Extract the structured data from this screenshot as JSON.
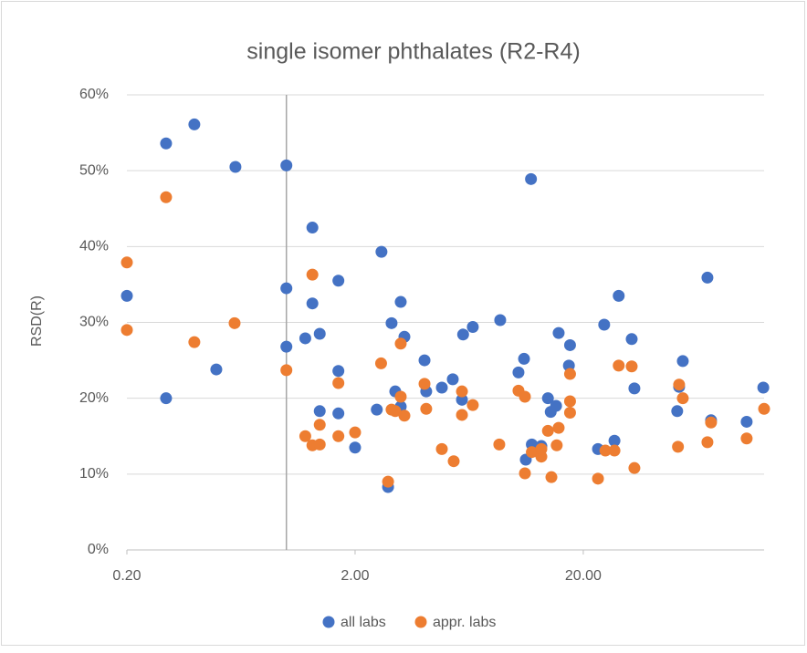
{
  "chart_data": {
    "type": "scatter",
    "title": "single isomer phthalates (R2-R4)",
    "y_label": "RSD(R)",
    "x_log": true,
    "grid": true,
    "legend": "bottom",
    "xlim": [
      0.2,
      124
    ],
    "ylim": [
      0,
      60
    ],
    "xticks": [
      {
        "value": 0.2,
        "label": "0.20"
      },
      {
        "value": 2,
        "label": "2.00"
      },
      {
        "value": 20,
        "label": "20.00"
      }
    ],
    "yticks": [
      {
        "value": 0,
        "label": "0%"
      },
      {
        "value": 10,
        "label": "10%"
      },
      {
        "value": 20,
        "label": "20%"
      },
      {
        "value": 30,
        "label": "30%"
      },
      {
        "value": 40,
        "label": "40%"
      },
      {
        "value": 50,
        "label": "50%"
      },
      {
        "value": 60,
        "label": "60%"
      }
    ],
    "vline_x": 1,
    "series": [
      {
        "name": "all labs",
        "color": "#4472c4",
        "x": [
          0.2,
          0.297,
          0.297,
          0.395,
          0.493,
          0.598,
          1.0,
          1.0,
          1.0,
          1.21,
          1.3,
          1.3,
          1.4,
          1.4,
          1.69,
          1.69,
          1.69,
          2.0,
          2.49,
          2.61,
          2.79,
          2.89,
          3.0,
          3.17,
          3.17,
          3.29,
          4.03,
          4.1,
          4.8,
          5.36,
          5.88,
          5.95,
          6.56,
          8.65,
          10.4,
          11.0,
          11.2,
          11.8,
          11.9,
          13.1,
          14.0,
          14.4,
          15.2,
          15.6,
          17.3,
          17.5,
          23.2,
          24.7,
          27.4,
          28.6,
          32.6,
          33.5,
          51.6,
          52.6,
          54.6,
          70.0,
          72.6,
          104,
          123
        ],
        "values": [
          33.5,
          20.0,
          53.6,
          56.1,
          23.8,
          50.5,
          50.7,
          34.5,
          26.8,
          27.9,
          42.5,
          32.5,
          28.5,
          18.3,
          35.5,
          23.6,
          18.0,
          13.5,
          18.5,
          39.3,
          8.3,
          29.9,
          20.9,
          32.7,
          18.9,
          28.1,
          25.0,
          20.9,
          21.4,
          22.5,
          19.8,
          28.4,
          29.4,
          30.3,
          23.4,
          25.2,
          11.9,
          48.9,
          13.9,
          13.7,
          20.0,
          18.2,
          19.0,
          28.6,
          24.3,
          27.0,
          13.3,
          29.7,
          14.4,
          33.5,
          27.8,
          21.3,
          18.3,
          21.5,
          24.9,
          35.9,
          17.1,
          16.9,
          21.4
        ]
      },
      {
        "name": "appr. labs",
        "color": "#ed7d31",
        "x": [
          0.2,
          0.2,
          0.297,
          0.395,
          0.593,
          1.0,
          1.21,
          1.3,
          1.3,
          1.4,
          1.4,
          1.69,
          1.69,
          2.0,
          2.6,
          2.79,
          2.89,
          3.0,
          3.17,
          3.17,
          3.29,
          4.03,
          4.1,
          4.8,
          5.41,
          5.88,
          5.88,
          6.56,
          8.57,
          10.4,
          11.1,
          11.1,
          11.9,
          13.1,
          13.1,
          14.0,
          14.5,
          15.3,
          15.6,
          17.5,
          17.5,
          17.5,
          23.2,
          25.0,
          27.4,
          28.6,
          32.6,
          33.5,
          52.0,
          52.6,
          54.6,
          70.0,
          72.6,
          104,
          124
        ],
        "values": [
          37.9,
          29.0,
          46.5,
          27.4,
          29.9,
          23.7,
          15.0,
          13.8,
          36.3,
          13.9,
          16.5,
          15.0,
          22.0,
          15.5,
          24.6,
          9.0,
          18.5,
          18.3,
          27.2,
          20.2,
          17.7,
          21.9,
          18.6,
          13.3,
          11.7,
          20.9,
          17.8,
          19.1,
          13.9,
          21.0,
          20.2,
          10.1,
          12.9,
          12.3,
          13.3,
          15.7,
          9.6,
          13.8,
          16.1,
          23.2,
          18.1,
          19.6,
          9.4,
          13.1,
          13.1,
          24.3,
          24.2,
          10.8,
          13.6,
          21.8,
          20.0,
          14.2,
          16.8,
          14.7,
          18.6
        ]
      }
    ]
  }
}
